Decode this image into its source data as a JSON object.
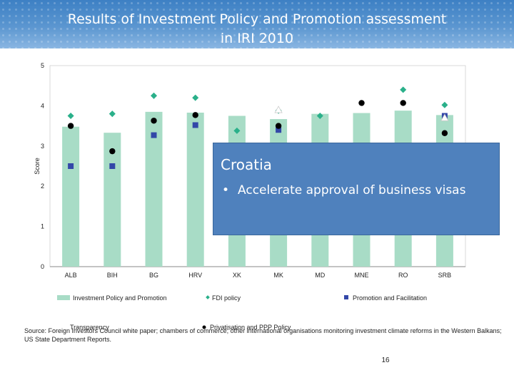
{
  "slide": {
    "title_line1": "Results of Investment Policy and Promotion assessment",
    "title_line2": "in IRI 2010",
    "page_number": "16",
    "source_note": "Source: Foreign Investors Council white paper; chambers of commerce; other international organisations monitoring investment climate reforms in the Western Balkans; US State Department Reports."
  },
  "callout": {
    "title": "Croatia",
    "bullet_symbol": "•",
    "bullet_text": "Accelerate approval of business visas",
    "color": "#4f81bd"
  },
  "chart_data": {
    "type": "bar",
    "ylabel": "Score",
    "xlabel": "",
    "ylim": [
      0,
      5
    ],
    "yticks": [
      0,
      1,
      2,
      3,
      4,
      5
    ],
    "grid": false,
    "legend_position": "bottom",
    "categories": [
      "ALB",
      "BIH",
      "BG",
      "HRV",
      "XK",
      "MK",
      "MD",
      "MNE",
      "RO",
      "SRB"
    ],
    "series": [
      {
        "name": "Investment Policy and Promotion",
        "type": "bar",
        "marker": "rect",
        "color": "#a8dcc6",
        "values": [
          3.48,
          3.33,
          3.85,
          3.83,
          3.75,
          3.67,
          3.8,
          3.82,
          3.88,
          3.77
        ]
      },
      {
        "name": "FDI policy",
        "type": "scatter",
        "marker": "diamond",
        "color": "#2ab08a",
        "values": [
          3.75,
          3.8,
          4.25,
          4.2,
          3.38,
          3.88,
          3.75,
          null,
          4.4,
          4.02
        ]
      },
      {
        "name": "Promotion and Facilitation",
        "type": "scatter",
        "marker": "square",
        "color": "#3347a8",
        "values": [
          2.5,
          2.5,
          3.27,
          3.52,
          null,
          3.4,
          null,
          null,
          null,
          3.75
        ]
      },
      {
        "name": "Transparency",
        "type": "scatter",
        "marker": "triangle",
        "color": "#ffffff",
        "values": [
          null,
          null,
          null,
          null,
          null,
          3.9,
          null,
          null,
          null,
          3.7
        ]
      },
      {
        "name": "Privatisation and PPP Policy",
        "type": "scatter",
        "marker": "circle",
        "color": "#000000",
        "values": [
          3.5,
          2.87,
          3.63,
          3.77,
          null,
          3.5,
          null,
          4.07,
          4.07,
          3.32
        ]
      }
    ]
  }
}
